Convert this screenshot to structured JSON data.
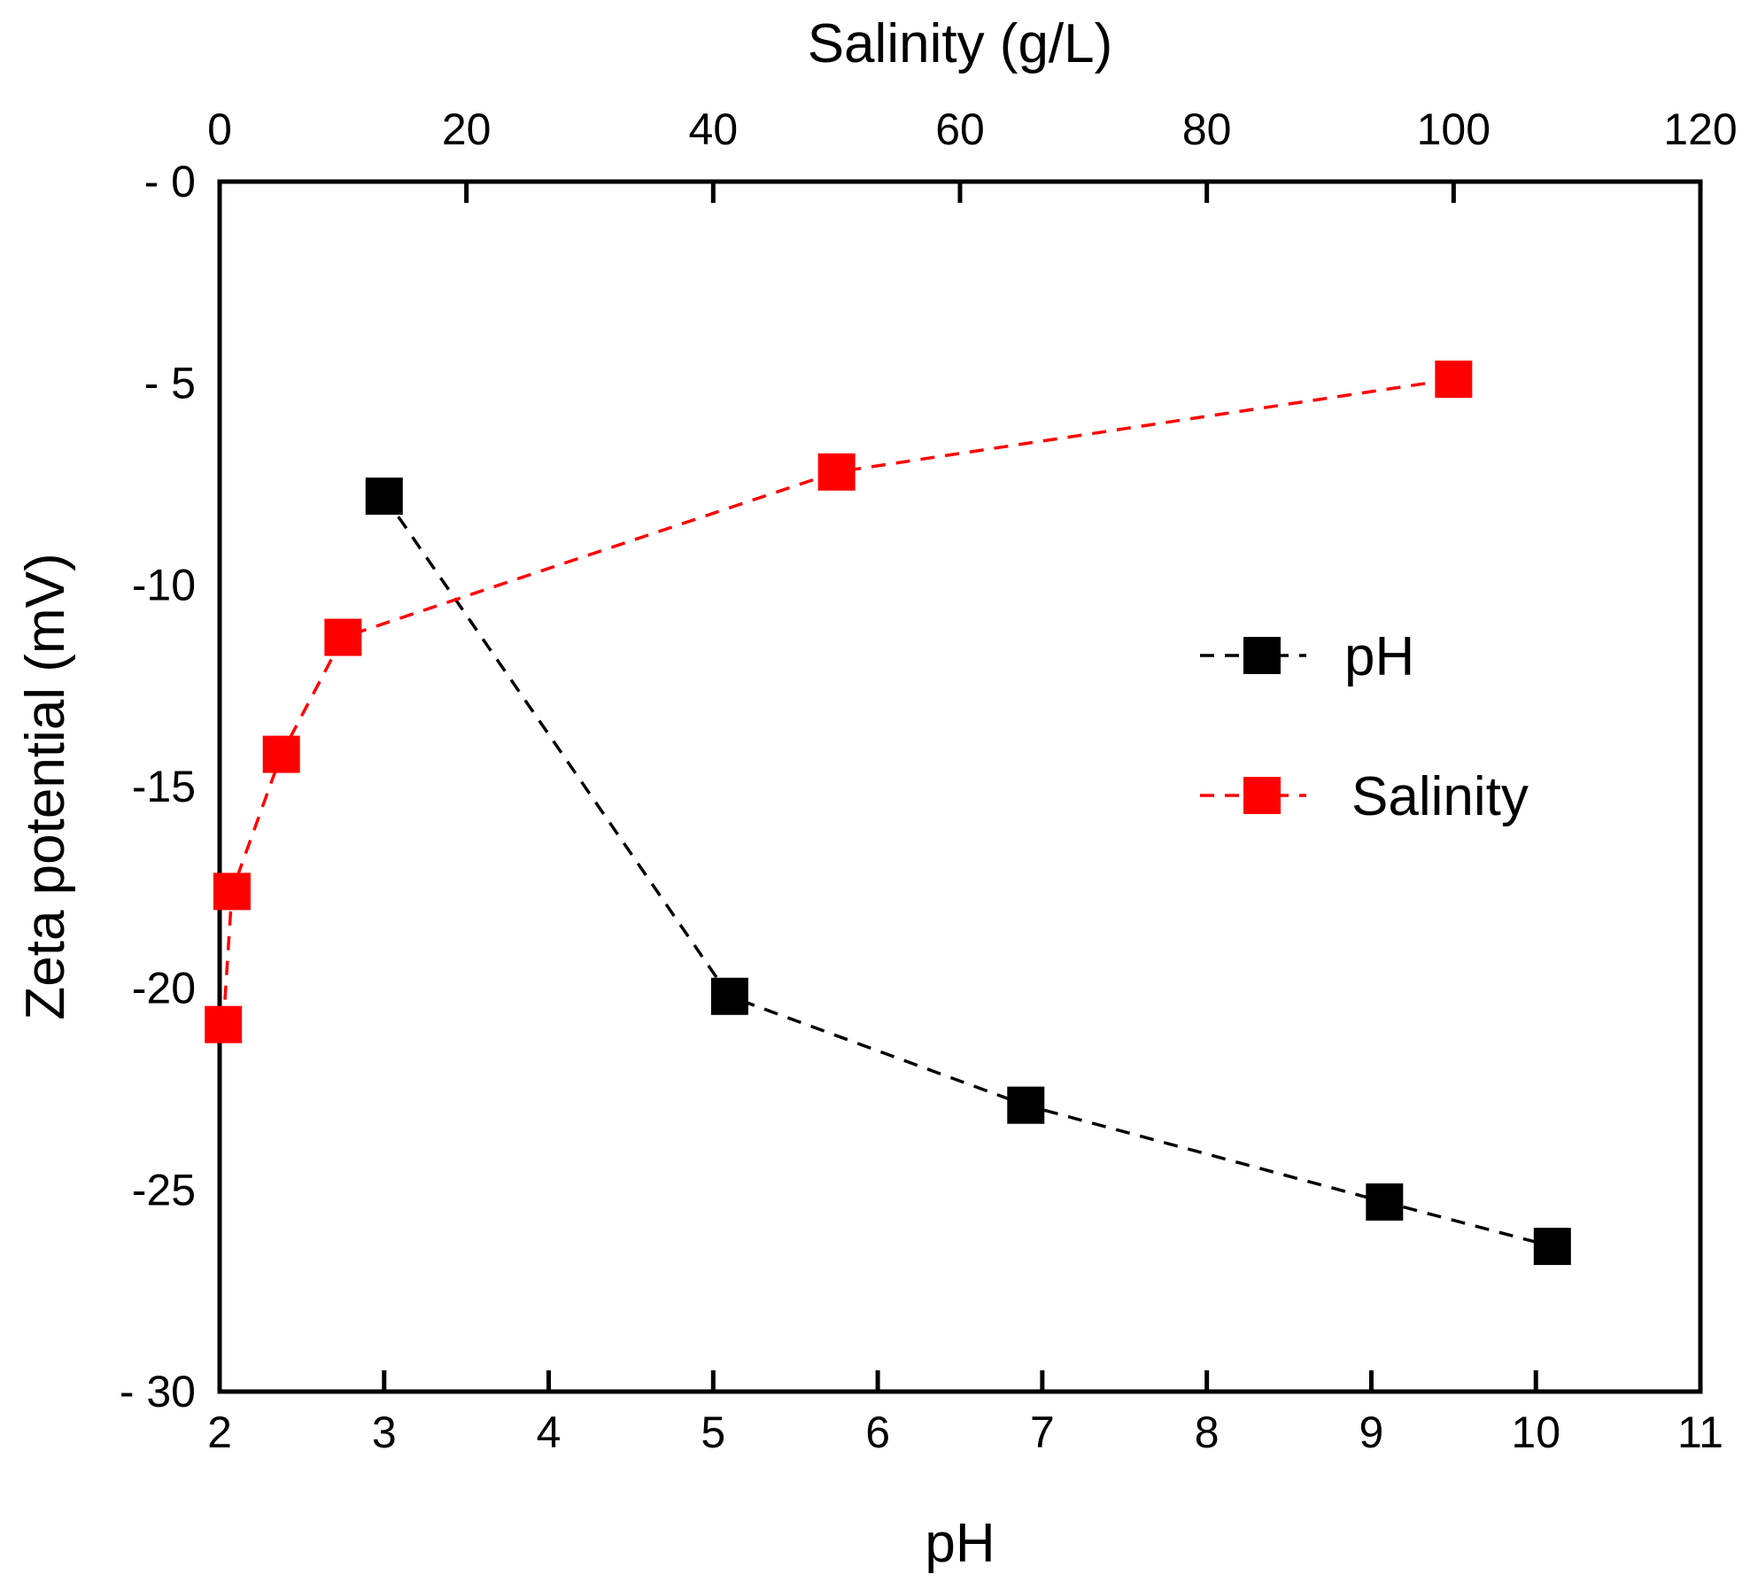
{
  "chart_data": {
    "type": "line",
    "title": "",
    "ylabel": "Zeta potential (mV)",
    "ylim": [
      -30,
      0
    ],
    "yticks": [
      0,
      -5,
      -10,
      -15,
      -20,
      -25,
      -30
    ],
    "ytick_labels": [
      "- 0",
      "- 5",
      "-10",
      "-15",
      "-20",
      "-25",
      "- 30"
    ],
    "x_bottom": {
      "label": "pH",
      "lim": [
        2,
        11
      ],
      "ticks": [
        2,
        3,
        4,
        5,
        6,
        7,
        8,
        9,
        10,
        11
      ],
      "tick_labels": [
        "2",
        "3",
        "4",
        "5",
        "6",
        "7",
        "8",
        "9",
        "10",
        "11"
      ]
    },
    "x_top": {
      "label": "Salinity (g/L)",
      "lim": [
        0,
        120
      ],
      "ticks": [
        0,
        20,
        40,
        60,
        80,
        100,
        120
      ],
      "tick_labels": [
        "0",
        "20",
        "40",
        "60",
        "80",
        "100",
        "120"
      ]
    },
    "series": [
      {
        "name": "pH",
        "axis": "bottom",
        "color": "#000000",
        "line_style": "dashed",
        "marker": "square",
        "x": [
          3,
          5.1,
          6.9,
          9.08,
          10.1
        ],
        "y": [
          -7.8,
          -20.2,
          -22.9,
          -25.3,
          -26.4
        ]
      },
      {
        "name": "Salinity",
        "axis": "top",
        "color": "#ff0000",
        "line_style": "dashed",
        "marker": "square",
        "x": [
          0.3,
          1,
          5,
          10,
          50,
          100
        ],
        "y": [
          -20.9,
          -17.6,
          -14.2,
          -11.3,
          -7.2,
          -4.9
        ]
      }
    ],
    "legend": {
      "position": "right-middle",
      "entries": [
        {
          "label": "pH",
          "color": "#000000"
        },
        {
          "label": "Salinity",
          "color": "#ff0000"
        }
      ]
    },
    "grid": false
  }
}
